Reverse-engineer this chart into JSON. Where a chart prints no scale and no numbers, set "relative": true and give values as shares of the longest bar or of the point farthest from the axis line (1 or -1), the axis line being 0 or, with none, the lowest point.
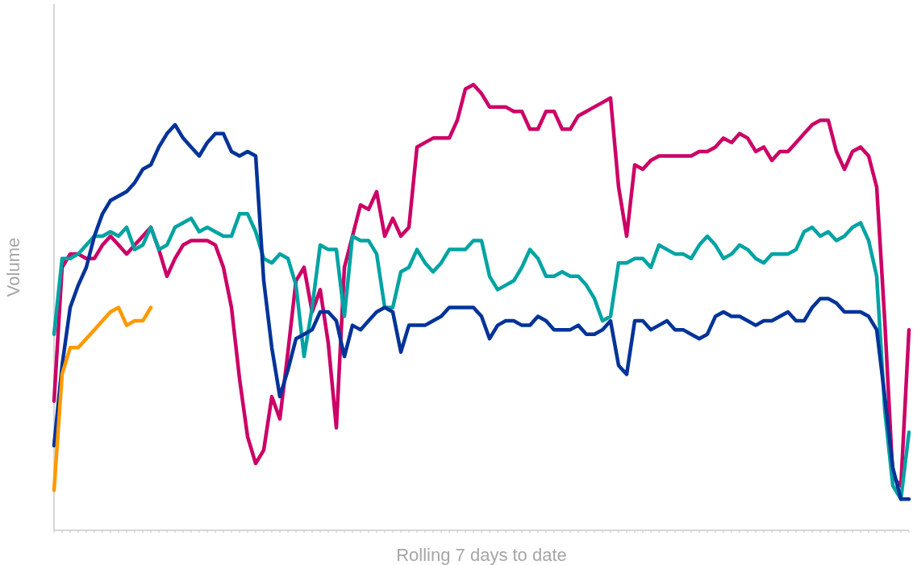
{
  "chart_data": {
    "type": "line",
    "relative": true,
    "xlabel": "Rolling 7 days to date",
    "ylabel": "Volume",
    "marker": "none",
    "line_style": "solid",
    "categories": [
      null,
      null,
      null,
      null,
      null,
      null,
      null,
      null,
      null,
      null,
      null,
      null,
      null,
      null,
      null,
      null,
      null,
      null,
      null,
      null,
      null,
      null,
      null,
      null,
      null,
      null,
      null,
      null,
      null,
      null,
      null,
      null,
      null,
      null,
      null,
      null,
      null,
      null,
      null,
      null,
      null,
      null,
      null,
      null,
      null,
      null,
      null,
      null,
      null,
      null,
      null,
      null,
      null,
      null,
      null,
      null,
      null,
      null,
      null,
      null,
      null,
      null,
      null,
      null,
      null,
      null,
      null,
      null,
      null,
      null,
      null,
      null,
      null,
      null,
      null,
      null,
      null,
      null,
      null,
      null,
      null,
      null,
      null,
      null,
      null,
      null,
      null,
      null,
      null,
      null,
      null,
      null,
      null,
      null,
      null,
      null,
      null,
      null,
      null,
      null,
      null,
      null,
      null,
      null,
      null,
      null,
      null
    ],
    "series": [
      {
        "color": "#cc0066",
        "values": [
          0.29,
          0.59,
          0.62,
          0.62,
          0.61,
          0.61,
          0.64,
          0.66,
          0.64,
          0.62,
          0.64,
          0.66,
          0.68,
          0.63,
          0.57,
          0.61,
          0.64,
          0.65,
          0.65,
          0.65,
          0.64,
          0.59,
          0.5,
          0.34,
          0.21,
          0.15,
          0.18,
          0.3,
          0.25,
          0.4,
          0.56,
          0.59,
          0.49,
          0.54,
          0.42,
          0.23,
          0.59,
          0.66,
          0.73,
          0.72,
          0.76,
          0.66,
          0.7,
          0.66,
          0.68,
          0.86,
          0.87,
          0.88,
          0.88,
          0.88,
          0.92,
          0.99,
          1,
          0.98,
          0.95,
          0.95,
          0.95,
          0.94,
          0.94,
          0.9,
          0.9,
          0.94,
          0.94,
          0.9,
          0.9,
          0.93,
          0.94,
          0.95,
          0.96,
          0.97,
          0.77,
          0.66,
          0.82,
          0.81,
          0.83,
          0.84,
          0.84,
          0.84,
          0.84,
          0.84,
          0.85,
          0.85,
          0.86,
          0.88,
          0.87,
          0.89,
          0.88,
          0.85,
          0.86,
          0.83,
          0.85,
          0.85,
          0.87,
          0.89,
          0.91,
          0.92,
          0.92,
          0.85,
          0.81,
          0.85,
          0.86,
          0.84,
          0.77,
          0.47,
          0.12,
          0.1,
          0.45
        ]
      },
      {
        "color": "#00a3a3",
        "values": [
          0.44,
          0.61,
          0.61,
          0.62,
          0.64,
          0.66,
          0.66,
          0.67,
          0.66,
          0.68,
          0.63,
          0.64,
          0.68,
          0.63,
          0.64,
          0.68,
          0.69,
          0.7,
          0.67,
          0.68,
          0.67,
          0.66,
          0.66,
          0.71,
          0.71,
          0.67,
          0.61,
          0.6,
          0.62,
          0.61,
          0.55,
          0.39,
          0.5,
          0.64,
          0.63,
          0.63,
          0.48,
          0.66,
          0.65,
          0.65,
          0.62,
          0.5,
          0.5,
          0.58,
          0.59,
          0.63,
          0.6,
          0.58,
          0.6,
          0.63,
          0.63,
          0.63,
          0.65,
          0.65,
          0.57,
          0.54,
          0.55,
          0.56,
          0.59,
          0.63,
          0.61,
          0.57,
          0.57,
          0.58,
          0.57,
          0.57,
          0.55,
          0.52,
          0.47,
          0.48,
          0.6,
          0.6,
          0.61,
          0.61,
          0.59,
          0.64,
          0.63,
          0.62,
          0.62,
          0.61,
          0.64,
          0.66,
          0.64,
          0.61,
          0.62,
          0.64,
          0.63,
          0.61,
          0.6,
          0.62,
          0.62,
          0.62,
          0.63,
          0.67,
          0.68,
          0.66,
          0.67,
          0.65,
          0.66,
          0.68,
          0.69,
          0.65,
          0.57,
          0.27,
          0.1,
          0.07,
          0.22
        ]
      },
      {
        "color": "#003399",
        "values": [
          0.19,
          0.37,
          0.5,
          0.55,
          0.59,
          0.66,
          0.71,
          0.74,
          0.75,
          0.76,
          0.78,
          0.81,
          0.82,
          0.86,
          0.89,
          0.91,
          0.88,
          0.86,
          0.84,
          0.87,
          0.89,
          0.89,
          0.85,
          0.84,
          0.85,
          0.84,
          0.56,
          0.41,
          0.3,
          0.36,
          0.43,
          0.44,
          0.45,
          0.49,
          0.49,
          0.47,
          0.39,
          0.46,
          0.45,
          0.47,
          0.49,
          0.5,
          0.49,
          0.4,
          0.46,
          0.46,
          0.46,
          0.47,
          0.48,
          0.5,
          0.5,
          0.5,
          0.5,
          0.48,
          0.43,
          0.46,
          0.47,
          0.47,
          0.46,
          0.46,
          0.48,
          0.47,
          0.45,
          0.45,
          0.45,
          0.46,
          0.44,
          0.44,
          0.45,
          0.47,
          0.37,
          0.35,
          0.47,
          0.47,
          0.45,
          0.46,
          0.47,
          0.45,
          0.45,
          0.44,
          0.43,
          0.44,
          0.48,
          0.49,
          0.48,
          0.48,
          0.47,
          0.46,
          0.47,
          0.47,
          0.48,
          0.49,
          0.47,
          0.47,
          0.5,
          0.52,
          0.52,
          0.51,
          0.49,
          0.49,
          0.49,
          0.48,
          0.45,
          0.3,
          0.14,
          0.07,
          0.07
        ]
      },
      {
        "color": "#ff9900",
        "values": [
          0.09,
          0.35,
          0.41,
          0.41,
          0.43,
          0.45,
          0.47,
          0.49,
          0.5,
          0.46,
          0.47,
          0.47,
          0.5,
          null,
          null,
          null,
          null,
          null,
          null,
          null,
          null,
          null,
          null,
          null,
          null,
          null,
          null,
          null,
          null,
          null,
          null,
          null,
          null,
          null,
          null,
          null,
          null,
          null,
          null,
          null,
          null,
          null,
          null,
          null,
          null,
          null,
          null,
          null,
          null,
          null,
          null,
          null,
          null,
          null,
          null,
          null,
          null,
          null,
          null,
          null,
          null,
          null,
          null,
          null,
          null,
          null,
          null,
          null,
          null,
          null,
          null,
          null,
          null,
          null,
          null,
          null,
          null,
          null,
          null,
          null,
          null,
          null,
          null,
          null,
          null,
          null,
          null,
          null,
          null,
          null,
          null,
          null,
          null,
          null,
          null,
          null,
          null,
          null,
          null,
          null,
          null,
          null,
          null,
          null,
          null,
          null,
          null
        ]
      }
    ]
  }
}
